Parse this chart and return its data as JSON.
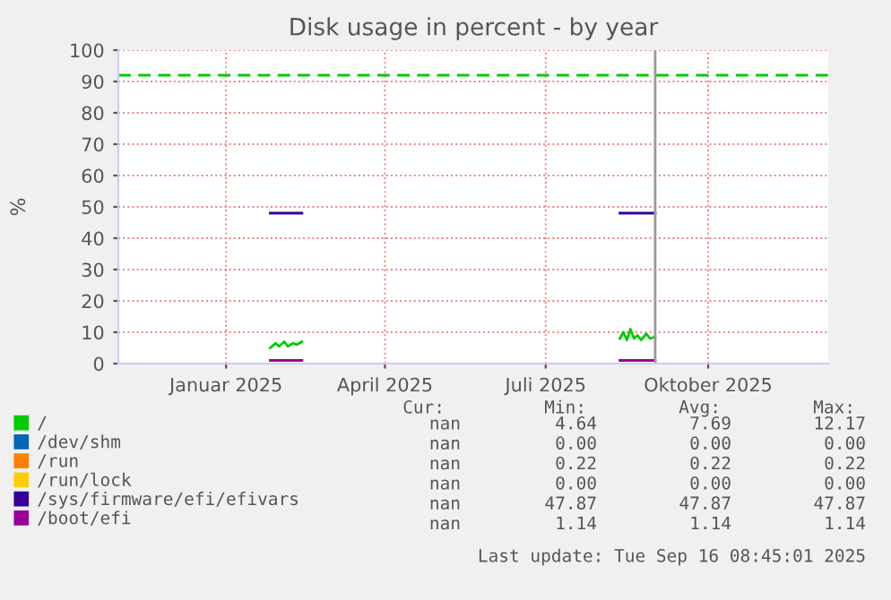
{
  "chart_data": {
    "type": "line",
    "title": "Disk usage in percent - by year",
    "ylabel": "%",
    "xlim": [
      "2024-11-01",
      "2025-12-08"
    ],
    "xticks": [
      {
        "value": "2025-01-01",
        "label": "Januar 2025"
      },
      {
        "value": "2025-04-01",
        "label": "April 2025"
      },
      {
        "value": "2025-07-01",
        "label": "Juli 2025"
      },
      {
        "value": "2025-10-01",
        "label": "Oktober 2025"
      }
    ],
    "ylim": [
      0,
      100
    ],
    "yticks": [
      0,
      10,
      20,
      30,
      40,
      50,
      60,
      70,
      80,
      90,
      100
    ],
    "grid": true,
    "legend": "bottom",
    "series": [
      {
        "name": "/",
        "color": "#00cc00",
        "x": [
          "2025-01-26",
          "2025-01-29",
          "2025-01-31",
          "2025-02-03",
          "2025-02-05",
          "2025-02-08",
          "2025-02-10",
          "2025-02-13",
          "2025-02-14",
          "2025-08-12",
          "2025-08-14",
          "2025-08-16",
          "2025-08-18",
          "2025-08-20",
          "2025-08-22",
          "2025-08-24",
          "2025-08-27",
          "2025-08-29",
          "2025-09-01"
        ],
        "values": [
          5,
          6.5,
          5.5,
          7,
          5.5,
          6.5,
          6,
          7,
          null,
          8,
          10,
          7.5,
          11,
          8,
          9,
          7.5,
          9.5,
          8,
          8.5
        ]
      },
      {
        "name": "/dev/shm",
        "color": "#0066b3"
      },
      {
        "name": "/run",
        "color": "#ff8000"
      },
      {
        "name": "/run/lock",
        "color": "#ffcc00"
      },
      {
        "name": "/sys/firmware/efi/efivars",
        "color": "#330099",
        "x": [
          "2025-01-26",
          "2025-02-13",
          "2025-02-14",
          "2025-08-12",
          "2025-09-01"
        ],
        "values": [
          48,
          48,
          null,
          48,
          48
        ]
      },
      {
        "name": "/boot/efi",
        "color": "#990099",
        "x": [
          "2025-01-26",
          "2025-02-13",
          "2025-02-14",
          "2025-08-12",
          "2025-09-01"
        ],
        "values": [
          1,
          1,
          null,
          1,
          1
        ]
      }
    ],
    "ref_lines": [
      {
        "axis": "y",
        "value": 92,
        "color": "#00cc00",
        "line_style": "dashed"
      },
      {
        "axis": "x",
        "value": "2025-09-01",
        "color": "#999999",
        "line_style": "solid"
      }
    ],
    "annotations": [
      "Cur:",
      "Min:",
      "Avg:",
      "Max:",
      "nan",
      "4.64",
      "7.69",
      "12.17",
      "nan",
      "0.00",
      "0.00",
      "0.00",
      "nan",
      "0.22",
      "0.22",
      "0.22",
      "nan",
      "0.00",
      "0.00",
      "0.00",
      "nan",
      "47.87",
      "47.87",
      "47.87",
      "nan",
      "1.14",
      "1.14",
      "1.14",
      "Last update: Tue Sep 16 08:45:01 2025"
    ]
  }
}
